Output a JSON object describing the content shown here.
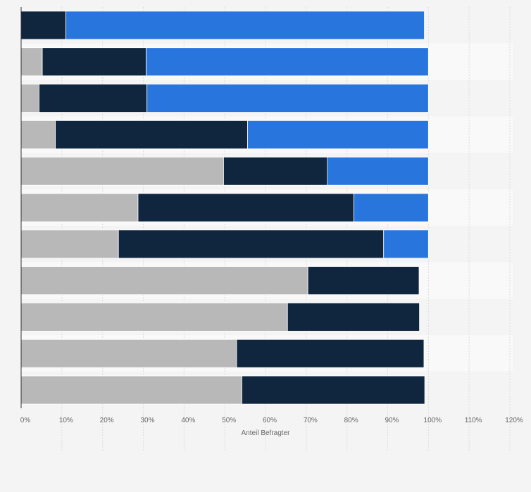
{
  "chart_data": {
    "type": "bar",
    "orientation": "horizontal",
    "stacked": true,
    "xlabel": "Anteil Befragter",
    "xlim": [
      0,
      120
    ],
    "xticks": [
      "0%",
      "10%",
      "20%",
      "30%",
      "40%",
      "50%",
      "60%",
      "70%",
      "80%",
      "90%",
      "100%",
      "110%",
      "120%"
    ],
    "grid": true,
    "legend": "none",
    "series": [
      {
        "color": "#b8b8b8",
        "values": [
          0,
          5.2,
          4.4,
          8.4,
          49.7,
          28.7,
          23.9,
          70.4,
          65.4,
          52.9,
          54.2
        ]
      },
      {
        "color": "#10263e",
        "values": [
          11,
          25.5,
          26.5,
          47.2,
          25.5,
          53,
          65.1,
          27.3,
          32.4,
          46,
          44.9
        ]
      },
      {
        "color": "#2876dd",
        "values": [
          88,
          69.3,
          69.1,
          44.4,
          24.8,
          18.3,
          11,
          0,
          0,
          0,
          0
        ]
      }
    ]
  }
}
